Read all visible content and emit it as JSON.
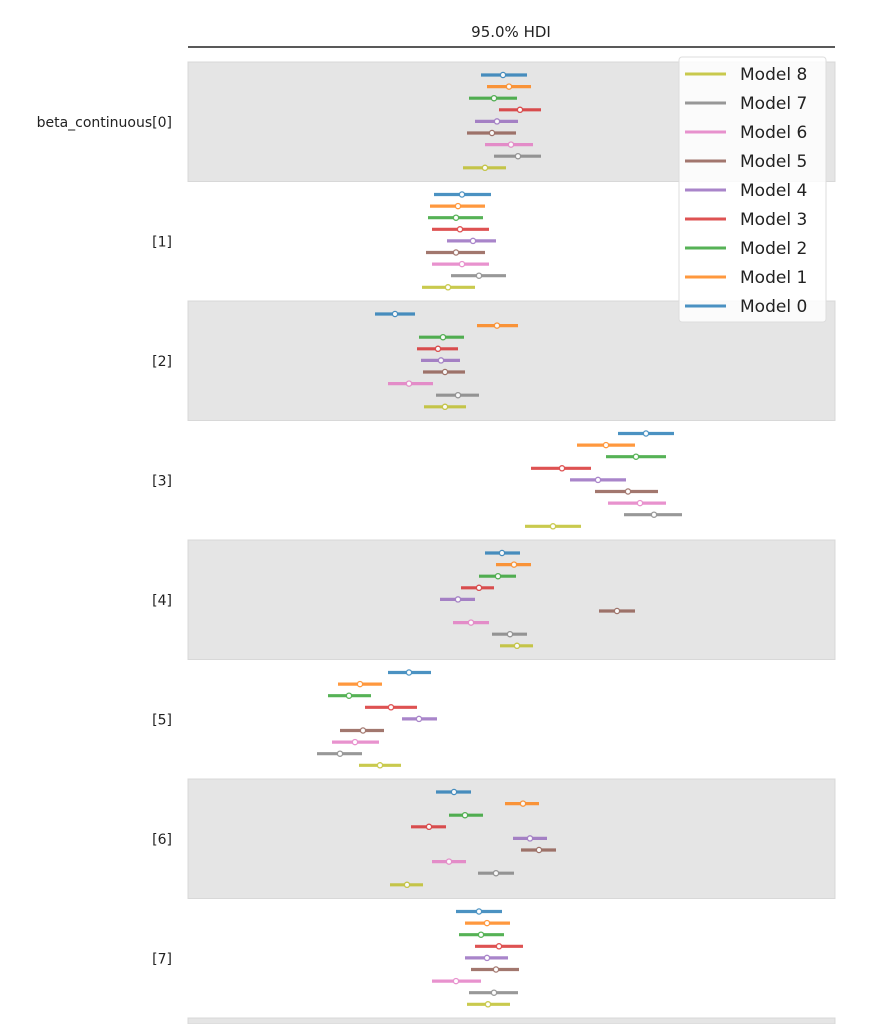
{
  "chart_data": {
    "type": "forest",
    "title": "95.0% HDI",
    "xlim": [
      -3.12,
      3.35
    ],
    "grid": false,
    "legend_placement": "top-right",
    "x_ticks_visible": false,
    "series": [
      {
        "name": "Model 0",
        "color": "#1f77b4"
      },
      {
        "name": "Model 1",
        "color": "#ff7f0e"
      },
      {
        "name": "Model 2",
        "color": "#2ca02c"
      },
      {
        "name": "Model 3",
        "color": "#d62728"
      },
      {
        "name": "Model 4",
        "color": "#9467bd"
      },
      {
        "name": "Model 5",
        "color": "#8c564b"
      },
      {
        "name": "Model 6",
        "color": "#e377c2"
      },
      {
        "name": "Model 7",
        "color": "#7f7f7f"
      },
      {
        "name": "Model 8",
        "color": "#bcbd22"
      }
    ],
    "legend_order": [
      "Model 8",
      "Model 7",
      "Model 6",
      "Model 5",
      "Model 4",
      "Model 3",
      "Model 2",
      "Model 1",
      "Model 0"
    ],
    "parameters": [
      {
        "label": "beta_continuous[0]",
        "hdi": [
          [
            -0.19,
            0.27,
            0.03
          ],
          [
            -0.13,
            0.31,
            0.09
          ],
          [
            -0.31,
            0.17,
            -0.06
          ],
          [
            -0.01,
            0.41,
            0.2
          ],
          [
            -0.25,
            0.18,
            -0.03
          ],
          [
            -0.33,
            0.16,
            -0.08
          ],
          [
            -0.15,
            0.33,
            0.11
          ],
          [
            -0.06,
            0.41,
            0.18
          ],
          [
            -0.37,
            0.06,
            -0.15
          ]
        ]
      },
      {
        "label": "[1]",
        "hdi": [
          [
            -0.66,
            -0.09,
            -0.38
          ],
          [
            -0.7,
            -0.15,
            -0.42
          ],
          [
            -0.72,
            -0.17,
            -0.44
          ],
          [
            -0.68,
            -0.11,
            -0.4
          ],
          [
            -0.53,
            -0.04,
            -0.27
          ],
          [
            -0.74,
            -0.15,
            -0.44
          ],
          [
            -0.68,
            -0.11,
            -0.38
          ],
          [
            -0.49,
            0.06,
            -0.21
          ],
          [
            -0.78,
            -0.25,
            -0.52
          ]
        ]
      },
      {
        "label": "[2]",
        "hdi": [
          [
            -1.25,
            -0.85,
            -1.05
          ],
          [
            -0.23,
            0.18,
            -0.03
          ],
          [
            -0.81,
            -0.36,
            -0.57
          ],
          [
            -0.83,
            -0.42,
            -0.62
          ],
          [
            -0.79,
            -0.4,
            -0.59
          ],
          [
            -0.77,
            -0.35,
            -0.55
          ],
          [
            -1.12,
            -0.67,
            -0.91
          ],
          [
            -0.64,
            -0.21,
            -0.42
          ],
          [
            -0.76,
            -0.34,
            -0.55
          ]
        ]
      },
      {
        "label": "[3]",
        "hdi": [
          [
            1.18,
            1.74,
            1.46
          ],
          [
            0.77,
            1.35,
            1.06
          ],
          [
            1.06,
            1.66,
            1.36
          ],
          [
            0.31,
            0.91,
            0.62
          ],
          [
            0.7,
            1.26,
            0.98
          ],
          [
            0.95,
            1.58,
            1.28
          ],
          [
            1.08,
            1.66,
            1.4
          ],
          [
            1.24,
            1.82,
            1.54
          ],
          [
            0.25,
            0.81,
            0.53
          ]
        ]
      },
      {
        "label": "[4]",
        "hdi": [
          [
            -0.15,
            0.2,
            0.02
          ],
          [
            -0.04,
            0.31,
            0.14
          ],
          [
            -0.21,
            0.16,
            -0.02
          ],
          [
            -0.39,
            -0.06,
            -0.21
          ],
          [
            -0.6,
            -0.25,
            -0.42
          ],
          [
            0.99,
            1.35,
            1.17
          ],
          [
            -0.47,
            -0.11,
            -0.29
          ],
          [
            -0.08,
            0.27,
            0.1
          ],
          [
            0.0,
            0.33,
            0.17
          ]
        ]
      },
      {
        "label": "[5]",
        "hdi": [
          [
            -1.12,
            -0.69,
            -0.91
          ],
          [
            -1.62,
            -1.18,
            -1.4
          ],
          [
            -1.72,
            -1.29,
            -1.51
          ],
          [
            -1.35,
            -0.83,
            -1.09
          ],
          [
            -0.98,
            -0.63,
            -0.81
          ],
          [
            -1.6,
            -1.16,
            -1.37
          ],
          [
            -1.68,
            -1.21,
            -1.45
          ],
          [
            -1.83,
            -1.38,
            -1.6
          ],
          [
            -1.41,
            -0.99,
            -1.2
          ]
        ]
      },
      {
        "label": "[6]",
        "hdi": [
          [
            -0.64,
            -0.29,
            -0.46
          ],
          [
            0.05,
            0.39,
            0.23
          ],
          [
            -0.51,
            -0.17,
            -0.35
          ],
          [
            -0.89,
            -0.54,
            -0.71
          ],
          [
            0.13,
            0.47,
            0.3
          ],
          [
            0.21,
            0.56,
            0.39
          ],
          [
            -0.68,
            -0.34,
            -0.51
          ],
          [
            -0.22,
            0.14,
            -0.04
          ],
          [
            -1.1,
            -0.77,
            -0.93
          ]
        ]
      },
      {
        "label": "[7]",
        "hdi": [
          [
            -0.44,
            0.02,
            -0.21
          ],
          [
            -0.35,
            0.1,
            -0.13
          ],
          [
            -0.41,
            0.04,
            -0.19
          ],
          [
            -0.25,
            0.23,
            -0.01
          ],
          [
            -0.35,
            0.08,
            -0.13
          ],
          [
            -0.29,
            0.19,
            -0.04
          ],
          [
            -0.68,
            -0.19,
            -0.44
          ],
          [
            -0.31,
            0.18,
            -0.06
          ],
          [
            -0.33,
            0.1,
            -0.12
          ]
        ]
      }
    ]
  }
}
